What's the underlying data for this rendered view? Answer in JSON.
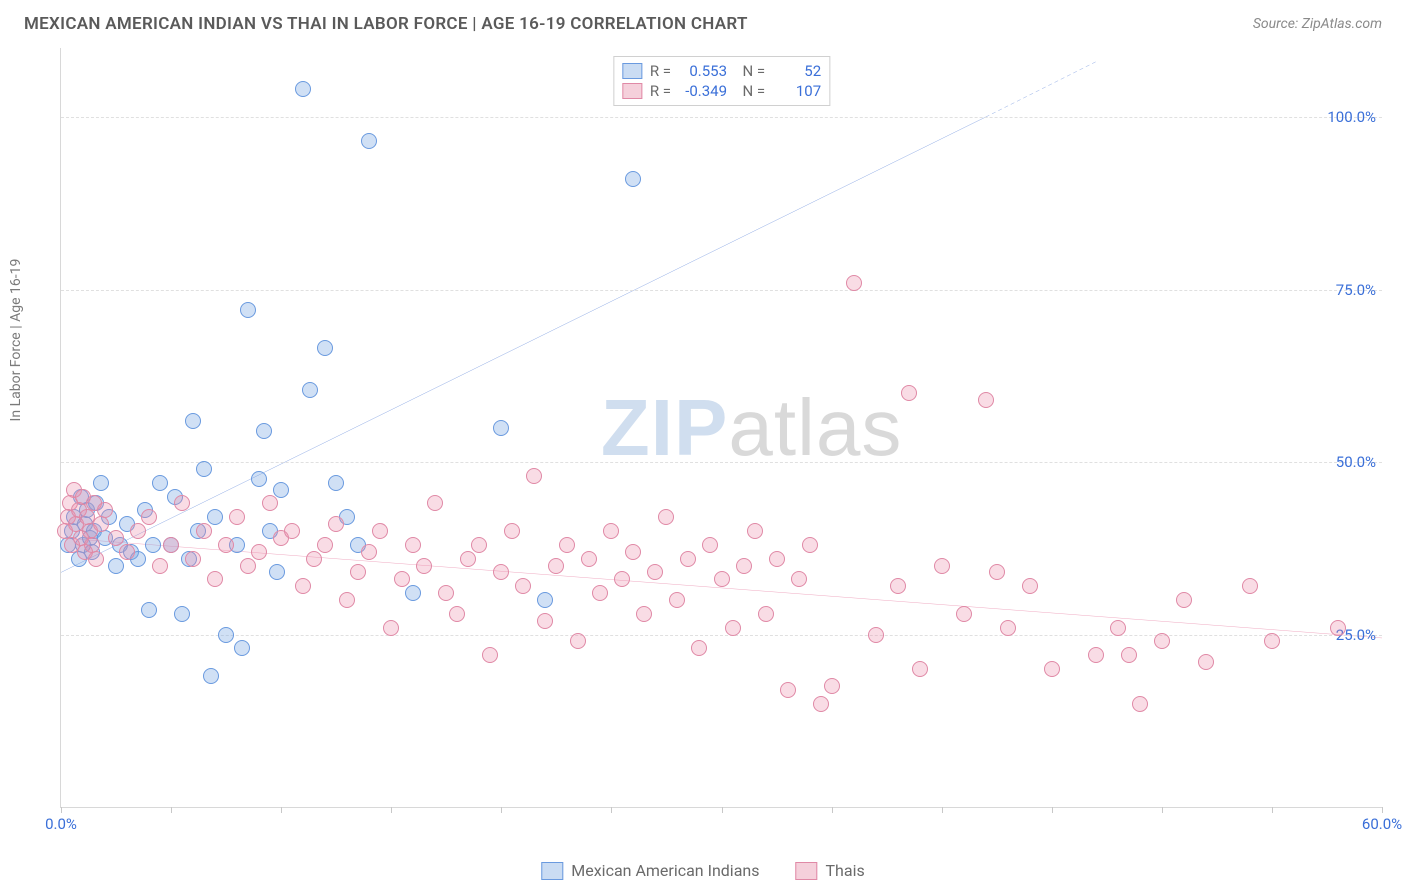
{
  "title": "MEXICAN AMERICAN INDIAN VS THAI IN LABOR FORCE | AGE 16-19 CORRELATION CHART",
  "source_label": "Source: ZipAtlas.com",
  "ylabel": "In Labor Force | Age 16-19",
  "watermark": {
    "part1": "ZIP",
    "part2": "atlas"
  },
  "chart": {
    "type": "scatter",
    "xlim": [
      0,
      60
    ],
    "ylim": [
      0,
      110
    ],
    "x_ticks": [
      0,
      5,
      10,
      15,
      20,
      25,
      30,
      35,
      40,
      45,
      50,
      55,
      60
    ],
    "x_tick_labels": {
      "0": "0.0%",
      "60": "60.0%"
    },
    "y_ticks": [
      25,
      50,
      75,
      100
    ],
    "y_tick_labels": {
      "25": "25.0%",
      "50": "50.0%",
      "75": "75.0%",
      "100": "100.0%"
    },
    "grid_color": "#e0e0e0",
    "background_color": "#ffffff",
    "axis_label_color": "#3a6fd8",
    "point_radius": 8,
    "series": [
      {
        "name": "Mexican American Indians",
        "label": "Mexican American Indians",
        "color_fill": "rgba(120,165,225,0.35)",
        "color_stroke": "#6a9adf",
        "swatch_fill": "#cadcf3",
        "swatch_border": "#6a9adf",
        "R": "0.553",
        "N": "52",
        "trend": {
          "x0": 0,
          "y0": 34,
          "x1": 42,
          "y1": 100,
          "color": "#2a5ecc",
          "width": 2
        },
        "trend_dash": {
          "x0": 42,
          "y0": 100,
          "x1": 47,
          "y1": 108
        },
        "points": [
          [
            0.3,
            38
          ],
          [
            0.5,
            40
          ],
          [
            0.6,
            42
          ],
          [
            0.8,
            36
          ],
          [
            0.9,
            45
          ],
          [
            1.0,
            38
          ],
          [
            1.1,
            41
          ],
          [
            1.2,
            43
          ],
          [
            1.3,
            39
          ],
          [
            1.4,
            37
          ],
          [
            1.5,
            40
          ],
          [
            1.6,
            44
          ],
          [
            1.8,
            47
          ],
          [
            2.0,
            39
          ],
          [
            2.2,
            42
          ],
          [
            2.5,
            35
          ],
          [
            2.7,
            38
          ],
          [
            3.0,
            41
          ],
          [
            3.2,
            37
          ],
          [
            3.5,
            36
          ],
          [
            3.8,
            43
          ],
          [
            4.0,
            28.5
          ],
          [
            4.2,
            38
          ],
          [
            4.5,
            47
          ],
          [
            5.0,
            38
          ],
          [
            5.2,
            45
          ],
          [
            5.5,
            28
          ],
          [
            5.8,
            36
          ],
          [
            6.0,
            56
          ],
          [
            6.2,
            40
          ],
          [
            6.5,
            49
          ],
          [
            6.8,
            19
          ],
          [
            7.0,
            42
          ],
          [
            7.5,
            25
          ],
          [
            8.0,
            38
          ],
          [
            8.2,
            23
          ],
          [
            8.5,
            72
          ],
          [
            9.0,
            47.5
          ],
          [
            9.2,
            54.5
          ],
          [
            9.5,
            40
          ],
          [
            9.8,
            34
          ],
          [
            10.0,
            46
          ],
          [
            11.0,
            104
          ],
          [
            11.3,
            60.5
          ],
          [
            12.0,
            66.5
          ],
          [
            12.5,
            47
          ],
          [
            13.0,
            42
          ],
          [
            13.5,
            38
          ],
          [
            14.0,
            96.5
          ],
          [
            16.0,
            31
          ],
          [
            20.0,
            55
          ],
          [
            22.0,
            30
          ],
          [
            26.0,
            91
          ]
        ]
      },
      {
        "name": "Thais",
        "label": "Thais",
        "color_fill": "rgba(235,140,170,0.30)",
        "color_stroke": "#e089a6",
        "swatch_fill": "#f5d0db",
        "swatch_border": "#e089a6",
        "R": "-0.349",
        "N": "107",
        "trend": {
          "x0": 0,
          "y0": 39,
          "x1": 60,
          "y1": 24.5,
          "color": "#e05b8a",
          "width": 2
        },
        "points": [
          [
            0.2,
            40
          ],
          [
            0.3,
            42
          ],
          [
            0.4,
            44
          ],
          [
            0.5,
            38
          ],
          [
            0.6,
            46
          ],
          [
            0.7,
            41
          ],
          [
            0.8,
            43
          ],
          [
            0.9,
            39
          ],
          [
            1.0,
            45
          ],
          [
            1.1,
            37
          ],
          [
            1.2,
            42
          ],
          [
            1.3,
            40
          ],
          [
            1.4,
            38
          ],
          [
            1.5,
            44
          ],
          [
            1.6,
            36
          ],
          [
            1.8,
            41
          ],
          [
            2.0,
            43
          ],
          [
            2.5,
            39
          ],
          [
            3.0,
            37
          ],
          [
            3.5,
            40
          ],
          [
            4.0,
            42
          ],
          [
            4.5,
            35
          ],
          [
            5.0,
            38
          ],
          [
            5.5,
            44
          ],
          [
            6.0,
            36
          ],
          [
            6.5,
            40
          ],
          [
            7.0,
            33
          ],
          [
            7.5,
            38
          ],
          [
            8.0,
            42
          ],
          [
            8.5,
            35
          ],
          [
            9.0,
            37
          ],
          [
            9.5,
            44
          ],
          [
            10.0,
            39
          ],
          [
            10.5,
            40
          ],
          [
            11.0,
            32
          ],
          [
            11.5,
            36
          ],
          [
            12.0,
            38
          ],
          [
            12.5,
            41
          ],
          [
            13.0,
            30
          ],
          [
            13.5,
            34
          ],
          [
            14.0,
            37
          ],
          [
            14.5,
            40
          ],
          [
            15.0,
            26
          ],
          [
            15.5,
            33
          ],
          [
            16.0,
            38
          ],
          [
            16.5,
            35
          ],
          [
            17.0,
            44
          ],
          [
            17.5,
            31
          ],
          [
            18.0,
            28
          ],
          [
            18.5,
            36
          ],
          [
            19.0,
            38
          ],
          [
            19.5,
            22
          ],
          [
            20.0,
            34
          ],
          [
            20.5,
            40
          ],
          [
            21.0,
            32
          ],
          [
            21.5,
            48
          ],
          [
            22.0,
            27
          ],
          [
            22.5,
            35
          ],
          [
            23.0,
            38
          ],
          [
            23.5,
            24
          ],
          [
            24.0,
            36
          ],
          [
            24.5,
            31
          ],
          [
            25.0,
            40
          ],
          [
            25.5,
            33
          ],
          [
            26.0,
            37
          ],
          [
            26.5,
            28
          ],
          [
            27.0,
            34
          ],
          [
            27.5,
            42
          ],
          [
            28.0,
            30
          ],
          [
            28.5,
            36
          ],
          [
            29.0,
            23
          ],
          [
            29.5,
            38
          ],
          [
            30.0,
            33
          ],
          [
            30.5,
            26
          ],
          [
            31.0,
            35
          ],
          [
            31.5,
            40
          ],
          [
            32.0,
            28
          ],
          [
            32.5,
            36
          ],
          [
            33.0,
            17
          ],
          [
            33.5,
            33
          ],
          [
            34.0,
            38
          ],
          [
            34.5,
            15
          ],
          [
            35.0,
            17.5
          ],
          [
            36.0,
            76
          ],
          [
            37.0,
            25
          ],
          [
            38.0,
            32
          ],
          [
            38.5,
            60
          ],
          [
            39.0,
            20
          ],
          [
            40.0,
            35
          ],
          [
            41.0,
            28
          ],
          [
            42.0,
            59
          ],
          [
            42.5,
            34
          ],
          [
            43.0,
            26
          ],
          [
            44.0,
            32
          ],
          [
            45.0,
            20
          ],
          [
            47.0,
            22
          ],
          [
            48.0,
            26
          ],
          [
            48.5,
            22
          ],
          [
            49.0,
            15
          ],
          [
            50.0,
            24
          ],
          [
            51.0,
            30
          ],
          [
            52.0,
            21
          ],
          [
            54.0,
            32
          ],
          [
            55.0,
            24
          ],
          [
            58.0,
            26
          ]
        ]
      }
    ]
  },
  "bottom_legend": [
    {
      "label": "Mexican American Indians",
      "fill": "#cadcf3",
      "border": "#6a9adf"
    },
    {
      "label": "Thais",
      "fill": "#f5d0db",
      "border": "#e089a6"
    }
  ]
}
